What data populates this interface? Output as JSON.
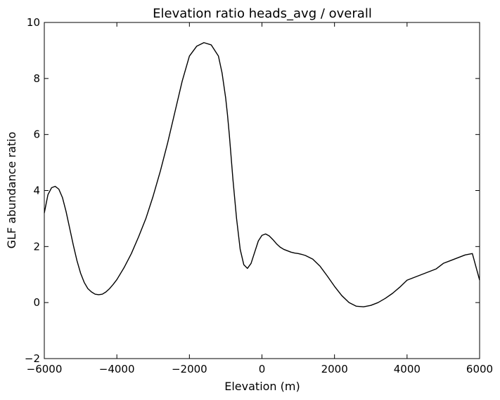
{
  "chart_data": {
    "type": "line",
    "title": "Elevation  ratio heads_avg / overall",
    "xlabel": "Elevation (m)",
    "ylabel": "GLF abundance ratio",
    "xlim": [
      -6000,
      6000
    ],
    "ylim": [
      -2,
      10
    ],
    "xticks": [
      -6000,
      -4000,
      -2000,
      0,
      2000,
      4000,
      6000
    ],
    "xtick_labels": [
      "−6000",
      "−4000",
      "−2000",
      "0",
      "2000",
      "4000",
      "6000"
    ],
    "yticks": [
      -2,
      0,
      2,
      4,
      6,
      8,
      10
    ],
    "ytick_labels": [
      "−2",
      "0",
      "2",
      "4",
      "6",
      "8",
      "10"
    ],
    "grid": false,
    "line_color": "#000000",
    "series": [
      {
        "x": [
          -6000,
          -5900,
          -5800,
          -5700,
          -5600,
          -5500,
          -5400,
          -5300,
          -5200,
          -5100,
          -5000,
          -4900,
          -4800,
          -4700,
          -4600,
          -4500,
          -4400,
          -4300,
          -4200,
          -4100,
          -4000,
          -3800,
          -3600,
          -3400,
          -3200,
          -3000,
          -2800,
          -2600,
          -2400,
          -2200,
          -2000,
          -1800,
          -1600,
          -1400,
          -1200,
          -1100,
          -1000,
          -950,
          -900,
          -850,
          -800,
          -700,
          -600,
          -500,
          -400,
          -300,
          -200,
          -100,
          0,
          100,
          200,
          300,
          400,
          500,
          600,
          700,
          800,
          900,
          1000,
          1100,
          1200,
          1400,
          1600,
          1800,
          2000,
          2200,
          2400,
          2600,
          2800,
          3000,
          3200,
          3400,
          3600,
          3800,
          4000,
          4200,
          4400,
          4600,
          4800,
          4900,
          5000,
          5200,
          5400,
          5600,
          5800,
          6000
        ],
        "y": [
          3.2,
          3.85,
          4.1,
          4.15,
          4.05,
          3.75,
          3.25,
          2.65,
          2.05,
          1.5,
          1.05,
          0.72,
          0.5,
          0.38,
          0.3,
          0.28,
          0.3,
          0.38,
          0.5,
          0.65,
          0.82,
          1.25,
          1.75,
          2.35,
          3.0,
          3.8,
          4.7,
          5.7,
          6.8,
          7.9,
          8.8,
          9.15,
          9.28,
          9.2,
          8.8,
          8.2,
          7.3,
          6.7,
          6.0,
          5.2,
          4.4,
          3.0,
          1.9,
          1.35,
          1.22,
          1.4,
          1.8,
          2.2,
          2.4,
          2.45,
          2.38,
          2.25,
          2.1,
          1.98,
          1.9,
          1.85,
          1.8,
          1.77,
          1.75,
          1.72,
          1.68,
          1.55,
          1.3,
          0.95,
          0.58,
          0.25,
          0.0,
          -0.13,
          -0.15,
          -0.1,
          0.0,
          0.15,
          0.33,
          0.55,
          0.8,
          0.9,
          1.0,
          1.1,
          1.2,
          1.3,
          1.4,
          1.5,
          1.6,
          1.7,
          1.75,
          0.8
        ]
      }
    ]
  }
}
